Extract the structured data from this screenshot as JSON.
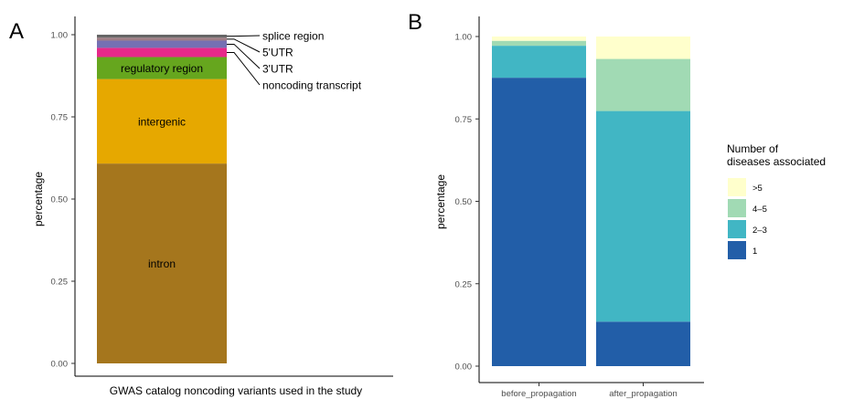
{
  "chart_data": [
    {
      "panel_label": "A",
      "type": "bar",
      "stacked": true,
      "xlabel": "GWAS catalog noncoding variants used in the study",
      "ylabel": "percentage",
      "ylim": [
        0,
        1
      ],
      "yticks": [
        "0.00",
        "0.25",
        "0.50",
        "0.75",
        "1.00"
      ],
      "categories": [
        ""
      ],
      "grid": false,
      "series": [
        {
          "name": "intron",
          "values": [
            0.608
          ],
          "color": "#a5761d"
        },
        {
          "name": "intergenic",
          "values": [
            0.257
          ],
          "color": "#e6a800"
        },
        {
          "name": "regulatory region",
          "values": [
            0.067
          ],
          "color": "#66a61e"
        },
        {
          "name": "noncoding transcript",
          "values": [
            0.028
          ],
          "color": "#e7298a"
        },
        {
          "name": "3'UTR",
          "values": [
            0.022
          ],
          "color": "#7570b3"
        },
        {
          "name": "5'UTR",
          "values": [
            0.009
          ],
          "color": "#a07d86"
        },
        {
          "name": "splice region",
          "values": [
            0.009
          ],
          "color": "#666666"
        }
      ],
      "annotations": [
        "splice region",
        "5'UTR",
        "3'UTR",
        "noncoding transcript"
      ]
    },
    {
      "panel_label": "B",
      "type": "bar",
      "stacked": true,
      "xlabel": "",
      "ylabel": "percentage",
      "ylim": [
        0,
        1
      ],
      "yticks": [
        "0.00",
        "0.25",
        "0.50",
        "0.75",
        "1.00"
      ],
      "categories": [
        "before_propagation",
        "after_propagation"
      ],
      "grid": false,
      "legend": {
        "title": "Number of\ndiseases associated",
        "position": "right"
      },
      "series": [
        {
          "name": "1",
          "values": [
            0.875,
            0.135
          ],
          "color": "#225ea8"
        },
        {
          "name": "2–3",
          "values": [
            0.097,
            0.639
          ],
          "color": "#41b6c4"
        },
        {
          "name": "4–5",
          "values": [
            0.015,
            0.158
          ],
          "color": "#a1dab4"
        },
        {
          "name": ">5",
          "values": [
            0.013,
            0.068
          ],
          "color": "#ffffcc"
        }
      ]
    }
  ]
}
